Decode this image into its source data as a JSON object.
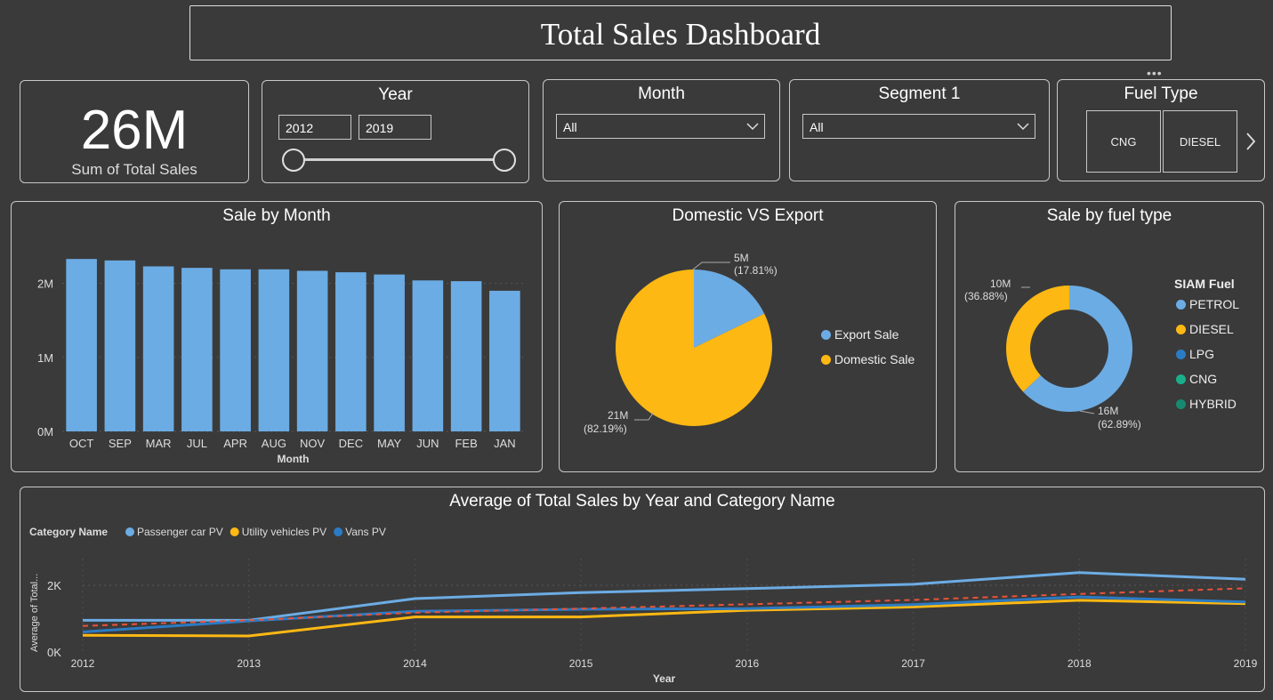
{
  "title": "Total Sales Dashboard",
  "kpi": {
    "value": "26M",
    "label": "Sum of Total Sales"
  },
  "year_slicer": {
    "title": "Year",
    "from": "2012",
    "to": "2019"
  },
  "month_slicer": {
    "title": "Month",
    "selected": "All"
  },
  "segment_slicer": {
    "title": "Segment 1",
    "selected": "All"
  },
  "fuel_slicer": {
    "title": "Fuel Type",
    "options": [
      "CNG",
      "DIESEL"
    ]
  },
  "colors": {
    "blue": "#6cace4",
    "yellow": "#fdb813",
    "dark_blue": "#2b7bc4",
    "teal": "#1aaf8a",
    "dark_teal": "#168a70",
    "orange_red": "#e8533a"
  },
  "chart_data": [
    {
      "type": "bar",
      "title": "Sale by Month",
      "xlabel": "Month",
      "ylabel": "",
      "categories": [
        "OCT",
        "SEP",
        "MAR",
        "JUL",
        "APR",
        "AUG",
        "NOV",
        "DEC",
        "MAY",
        "JUN",
        "FEB",
        "JAN"
      ],
      "values": [
        2330000,
        2310000,
        2230000,
        2210000,
        2190000,
        2190000,
        2170000,
        2150000,
        2120000,
        2040000,
        2030000,
        1900000
      ],
      "ylim": [
        0,
        2500000
      ],
      "yticks": [
        "0M",
        "1M",
        "2M"
      ],
      "grid": true
    },
    {
      "type": "pie",
      "title": "Domestic VS Export",
      "slices": [
        {
          "name": "Export Sale",
          "value": 17.81,
          "label": "5M",
          "pct": "(17.81%)",
          "color": "#6cace4"
        },
        {
          "name": "Domestic Sale",
          "value": 82.19,
          "label": "21M",
          "pct": "(82.19%)",
          "color": "#fdb813"
        }
      ],
      "legend": "right"
    },
    {
      "type": "pie",
      "title": "Sale by fuel type",
      "donut": true,
      "legend_title": "SIAM Fuel",
      "legend_items": [
        {
          "name": "PETROL",
          "color": "#6cace4"
        },
        {
          "name": "DIESEL",
          "color": "#fdb813"
        },
        {
          "name": "LPG",
          "color": "#2b7bc4"
        },
        {
          "name": "CNG",
          "color": "#1aaf8a"
        },
        {
          "name": "HYBRID",
          "color": "#168a70"
        }
      ],
      "slices": [
        {
          "name": "PETROL",
          "value": 62.89,
          "label": "16M",
          "pct": "(62.89%)",
          "color": "#6cace4"
        },
        {
          "name": "DIESEL",
          "value": 36.88,
          "label": "10M",
          "pct": "(36.88%)",
          "color": "#fdb813"
        }
      ],
      "legend": "right"
    },
    {
      "type": "line",
      "title": "Average of Total Sales by Year and Category Name",
      "legend_title": "Category Name",
      "xlabel": "Year",
      "ylabel": "Average of Total...",
      "x": [
        "2012",
        "2013",
        "2014",
        "2015",
        "2016",
        "2017",
        "2018",
        "2019"
      ],
      "yticks": [
        "0K",
        "2K"
      ],
      "ylim": [
        0,
        2800
      ],
      "series": [
        {
          "name": "Passenger car PV",
          "color": "#6cace4",
          "values": [
            950,
            950,
            1600,
            1780,
            1900,
            2030,
            2380,
            2180
          ]
        },
        {
          "name": "Utility vehicles PV",
          "color": "#fdb813",
          "values": [
            500,
            480,
            1050,
            1050,
            1250,
            1350,
            1550,
            1450
          ]
        },
        {
          "name": "Vans PV",
          "color": "#2b7bc4",
          "values": [
            600,
            930,
            1220,
            1280,
            1300,
            1420,
            1650,
            1500
          ]
        }
      ],
      "trend": {
        "color": "#e8533a",
        "values": [
          780,
          950,
          1180,
          1300,
          1430,
          1560,
          1740,
          1910
        ]
      },
      "legend": "top-left"
    }
  ]
}
